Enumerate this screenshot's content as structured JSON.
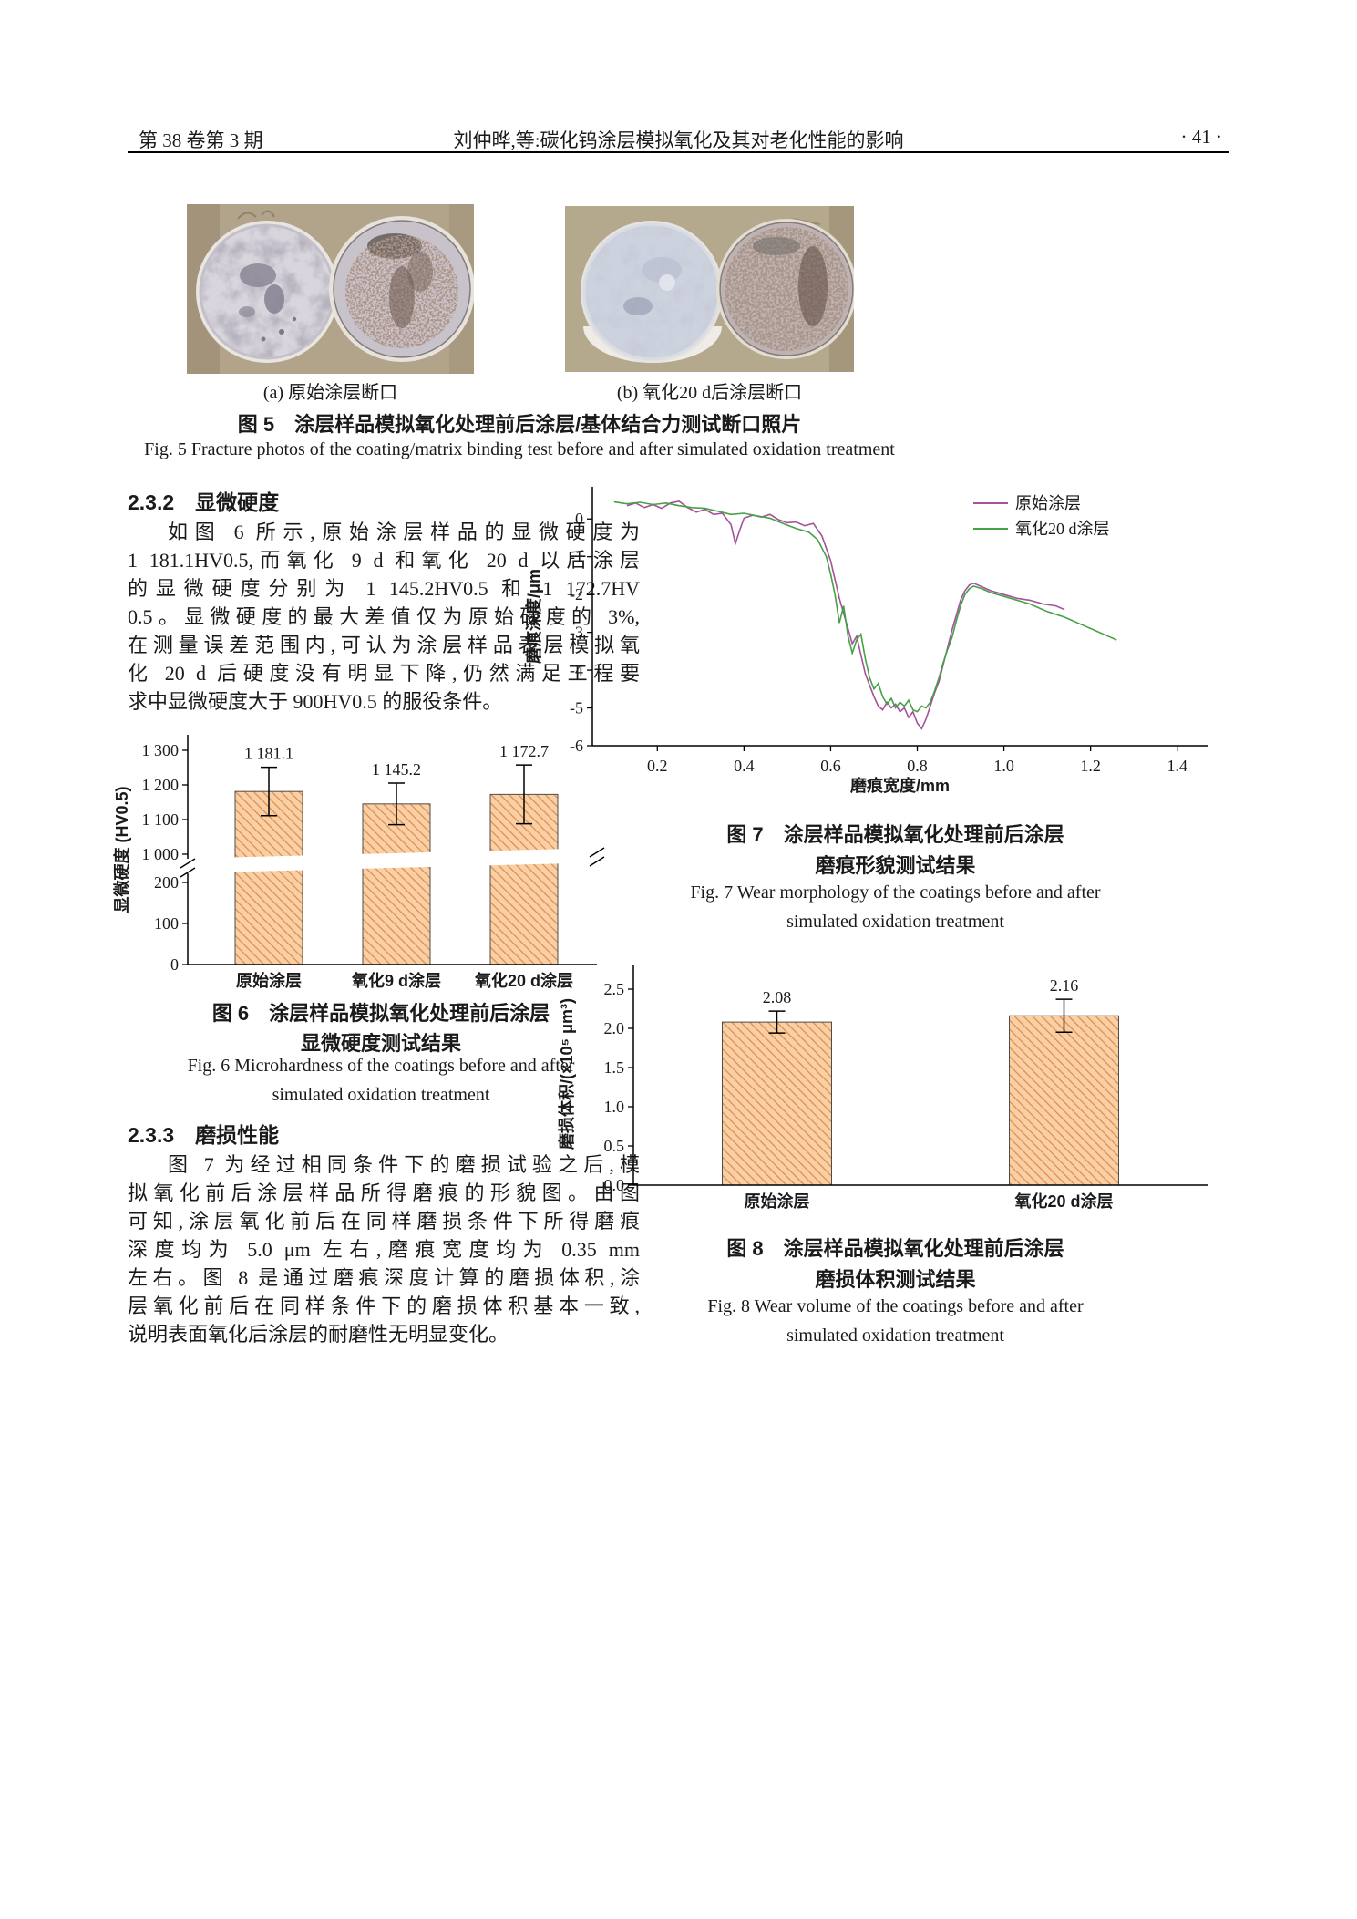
{
  "header": {
    "volume_issue": "第 38 卷第 3 期",
    "title": "刘仲晔,等:碳化钨涂层模拟氧化及其对老化性能的影响",
    "page_number": "· 41 ·"
  },
  "figure5": {
    "label_a": "(a) 原始涂层断口",
    "label_b": "(b) 氧化20 d后涂层断口",
    "caption_zh": "图 5　涂层样品模拟氧化处理前后涂层/基体结合力测试断口照片",
    "caption_en": "Fig. 5  Fracture photos of the coating/matrix binding test before and after simulated oxidation treatment"
  },
  "section_232": {
    "heading": "2.3.2　显微硬度",
    "lines": [
      "如图 6 所示,原始涂层样品的显微硬度为",
      "1 181.1HV0.5,而氧化 9 d 和氧化 20 d 以后涂层",
      "的显微硬度分别为 1 145.2HV0.5 和 1 172.7HV",
      "0.5。显微硬度的最大差值仅为原始硬度的 3%,",
      "在测量误差范围内,可认为涂层样品表层模拟氧",
      "化 20 d 后硬度没有明显下降,仍然满足工程要",
      "求中显微硬度大于 900HV0.5 的服役条件。"
    ]
  },
  "section_233": {
    "heading": "2.3.3　磨损性能",
    "lines": [
      "图 7 为经过相同条件下的磨损试验之后,模",
      "拟氧化前后涂层样品所得磨痕的形貌图。由图",
      "可知,涂层氧化前后在同样磨损条件下所得磨痕",
      "深度均为 5.0 μm 左右,磨痕宽度均为 0.35 mm",
      "左右。图 8 是通过磨痕深度计算的磨损体积,涂",
      "层氧化前后在同样条件下的磨损体积基本一致,",
      "说明表面氧化后涂层的耐磨性无明显变化。"
    ]
  },
  "figure6": {
    "caption_zh_1": "图 6　涂层样品模拟氧化处理前后涂层",
    "caption_zh_2": "显微硬度测试结果",
    "caption_en_1": "Fig. 6  Microhardness of the coatings before and after",
    "caption_en_2": "simulated oxidation treatment"
  },
  "figure7": {
    "caption_zh_1": "图 7　涂层样品模拟氧化处理前后涂层",
    "caption_zh_2": "磨痕形貌测试结果",
    "caption_en_1": "Fig. 7  Wear morphology of the coatings before and after",
    "caption_en_2": "simulated oxidation treatment"
  },
  "figure8": {
    "caption_zh_1": "图 8　涂层样品模拟氧化处理前后涂层",
    "caption_zh_2": "磨损体积测试结果",
    "caption_en_1": "Fig. 8  Wear volume of the coatings before and after",
    "caption_en_2": "simulated oxidation treatment"
  },
  "chart_data": [
    {
      "id": "fig6",
      "type": "bar",
      "categories": [
        "原始涂层",
        "氧化9 d涂层",
        "氧化20 d涂层"
      ],
      "values": [
        1181.1,
        1145.2,
        1172.7
      ],
      "value_labels": [
        "1 181.1",
        "1 145.2",
        "1 172.7"
      ],
      "errors": [
        70,
        60,
        85
      ],
      "ylabel": "显微硬度 (HV0.5)",
      "broken_axis": true,
      "yticks_lower": {
        "values": [
          0,
          100,
          200
        ],
        "labels": [
          "0",
          "100",
          "200"
        ]
      },
      "yticks_upper": {
        "values": [
          1000,
          1100,
          1200,
          1300
        ],
        "labels": [
          "1 000",
          "1 100",
          "1 200",
          "1 300"
        ]
      },
      "bar_fill": "#f8d0a4",
      "bar_hatch": "#e0884e",
      "bar_stroke": "#4d4d4d"
    },
    {
      "id": "fig7",
      "type": "line",
      "xlabel": "磨痕宽度/mm",
      "ylabel": "磨痕深度/μm",
      "xrange": [
        0.05,
        1.47
      ],
      "yrange": [
        -6,
        0.85
      ],
      "xticks": {
        "values": [
          0.2,
          0.4,
          0.6,
          0.8,
          1.0,
          1.2,
          1.4
        ],
        "labels": [
          "0.2",
          "0.4",
          "0.6",
          "0.8",
          "1.0",
          "1.2",
          "1.4"
        ]
      },
      "yticks": {
        "values": [
          0,
          -1,
          -2,
          -3,
          -4,
          -5,
          -6
        ],
        "labels": [
          "0",
          "-1",
          "-2",
          "-3",
          "-4",
          "-5",
          "-6"
        ]
      },
      "legend_position": "top-right",
      "series": [
        {
          "name": "原始涂层",
          "color": "#a5519c",
          "points": [
            [
              0.13,
              0.35
            ],
            [
              0.15,
              0.42
            ],
            [
              0.17,
              0.3
            ],
            [
              0.19,
              0.38
            ],
            [
              0.21,
              0.28
            ],
            [
              0.23,
              0.42
            ],
            [
              0.25,
              0.47
            ],
            [
              0.27,
              0.3
            ],
            [
              0.29,
              0.18
            ],
            [
              0.31,
              0.25
            ],
            [
              0.33,
              0.12
            ],
            [
              0.35,
              0.15
            ],
            [
              0.37,
              -0.15
            ],
            [
              0.38,
              -0.65
            ],
            [
              0.39,
              -0.3
            ],
            [
              0.4,
              0.02
            ],
            [
              0.42,
              0.1
            ],
            [
              0.44,
              0.05
            ],
            [
              0.46,
              0.12
            ],
            [
              0.48,
              -0.02
            ],
            [
              0.5,
              -0.1
            ],
            [
              0.52,
              -0.08
            ],
            [
              0.54,
              -0.18
            ],
            [
              0.56,
              -0.12
            ],
            [
              0.58,
              -0.45
            ],
            [
              0.6,
              -1.1
            ],
            [
              0.61,
              -1.6
            ],
            [
              0.62,
              -2.1
            ],
            [
              0.63,
              -2.5
            ],
            [
              0.64,
              -2.9
            ],
            [
              0.65,
              -3.3
            ],
            [
              0.66,
              -3.1
            ],
            [
              0.67,
              -3.6
            ],
            [
              0.68,
              -4.1
            ],
            [
              0.69,
              -4.4
            ],
            [
              0.7,
              -4.7
            ],
            [
              0.71,
              -4.95
            ],
            [
              0.72,
              -5.05
            ],
            [
              0.73,
              -4.85
            ],
            [
              0.74,
              -5.0
            ],
            [
              0.75,
              -4.9
            ],
            [
              0.76,
              -5.1
            ],
            [
              0.77,
              -5.0
            ],
            [
              0.78,
              -5.25
            ],
            [
              0.79,
              -5.1
            ],
            [
              0.8,
              -5.4
            ],
            [
              0.81,
              -5.55
            ],
            [
              0.82,
              -5.3
            ],
            [
              0.83,
              -4.95
            ],
            [
              0.84,
              -4.6
            ],
            [
              0.85,
              -4.3
            ],
            [
              0.86,
              -3.85
            ],
            [
              0.87,
              -3.4
            ],
            [
              0.88,
              -2.95
            ],
            [
              0.89,
              -2.55
            ],
            [
              0.9,
              -2.15
            ],
            [
              0.91,
              -1.9
            ],
            [
              0.92,
              -1.75
            ],
            [
              0.93,
              -1.7
            ],
            [
              0.95,
              -1.8
            ],
            [
              0.97,
              -1.9
            ],
            [
              1.0,
              -2.0
            ],
            [
              1.03,
              -2.1
            ],
            [
              1.06,
              -2.15
            ],
            [
              1.09,
              -2.25
            ],
            [
              1.12,
              -2.3
            ],
            [
              1.14,
              -2.4
            ]
          ]
        },
        {
          "name": "氧化20 d涂层",
          "color": "#44a244",
          "points": [
            [
              0.1,
              0.45
            ],
            [
              0.13,
              0.4
            ],
            [
              0.16,
              0.44
            ],
            [
              0.19,
              0.38
            ],
            [
              0.22,
              0.42
            ],
            [
              0.25,
              0.35
            ],
            [
              0.28,
              0.3
            ],
            [
              0.31,
              0.28
            ],
            [
              0.34,
              0.2
            ],
            [
              0.37,
              0.12
            ],
            [
              0.4,
              0.15
            ],
            [
              0.43,
              0.08
            ],
            [
              0.46,
              0.02
            ],
            [
              0.49,
              -0.12
            ],
            [
              0.52,
              -0.25
            ],
            [
              0.55,
              -0.35
            ],
            [
              0.57,
              -0.55
            ],
            [
              0.59,
              -1.0
            ],
            [
              0.6,
              -1.45
            ],
            [
              0.61,
              -2.0
            ],
            [
              0.62,
              -2.75
            ],
            [
              0.63,
              -2.3
            ],
            [
              0.64,
              -3.1
            ],
            [
              0.65,
              -3.55
            ],
            [
              0.66,
              -3.2
            ],
            [
              0.67,
              -3.05
            ],
            [
              0.68,
              -3.7
            ],
            [
              0.69,
              -4.2
            ],
            [
              0.7,
              -4.5
            ],
            [
              0.71,
              -4.35
            ],
            [
              0.72,
              -4.7
            ],
            [
              0.73,
              -4.9
            ],
            [
              0.74,
              -4.75
            ],
            [
              0.75,
              -5.0
            ],
            [
              0.76,
              -4.85
            ],
            [
              0.77,
              -4.95
            ],
            [
              0.78,
              -4.8
            ],
            [
              0.79,
              -5.05
            ],
            [
              0.8,
              -5.1
            ],
            [
              0.81,
              -4.95
            ],
            [
              0.82,
              -5.0
            ],
            [
              0.83,
              -4.85
            ],
            [
              0.84,
              -4.55
            ],
            [
              0.85,
              -4.2
            ],
            [
              0.86,
              -3.8
            ],
            [
              0.87,
              -3.45
            ],
            [
              0.88,
              -3.15
            ],
            [
              0.89,
              -2.7
            ],
            [
              0.9,
              -2.3
            ],
            [
              0.91,
              -2.0
            ],
            [
              0.92,
              -1.85
            ],
            [
              0.93,
              -1.78
            ],
            [
              0.95,
              -1.85
            ],
            [
              0.97,
              -1.95
            ],
            [
              1.0,
              -2.05
            ],
            [
              1.03,
              -2.15
            ],
            [
              1.06,
              -2.25
            ],
            [
              1.1,
              -2.45
            ],
            [
              1.14,
              -2.6
            ],
            [
              1.18,
              -2.8
            ],
            [
              1.21,
              -2.95
            ],
            [
              1.24,
              -3.1
            ],
            [
              1.26,
              -3.2
            ]
          ]
        }
      ]
    },
    {
      "id": "fig8",
      "type": "bar",
      "categories": [
        "原始涂层",
        "氧化20 d涂层"
      ],
      "values": [
        2.08,
        2.16
      ],
      "value_labels": [
        "2.08",
        "2.16"
      ],
      "errors": [
        0.14,
        0.21
      ],
      "ylabel": "磨损体积/(×10⁵ μm³)",
      "yticks": {
        "values": [
          0,
          0.5,
          1.0,
          1.5,
          2.0,
          2.5
        ],
        "labels": [
          "0.0",
          "0.5",
          "1.0",
          "1.5",
          "2.0",
          "2.5"
        ]
      },
      "bar_fill": "#f8d0a4",
      "bar_hatch": "#e0884e",
      "bar_stroke": "#4d4d4d"
    }
  ]
}
